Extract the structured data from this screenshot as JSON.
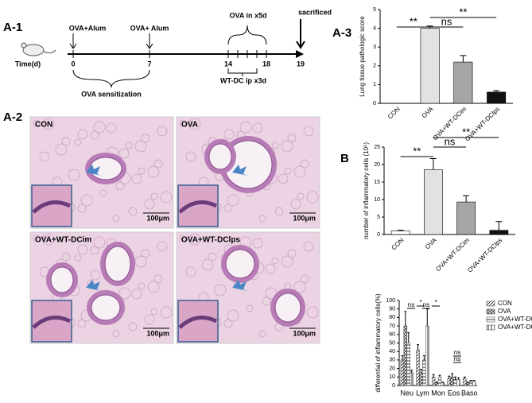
{
  "panel_labels": [
    "A-1",
    "A-3",
    "A-2",
    "B"
  ],
  "timeline": {
    "axis_label": "Time(d)",
    "days": [
      "0",
      "7",
      "14",
      "18",
      "19"
    ],
    "events": [
      "OVA+Alum",
      "OVA+ Alum",
      "OVA in x5d",
      "sacrificed"
    ],
    "treatment": "WT-DC ip x3d",
    "phase": "OVA sensitization"
  },
  "micrographs": [
    {
      "label": "CON",
      "scale": "100μm"
    },
    {
      "label": "OVA",
      "scale": "100μm"
    },
    {
      "label": "OVA+WT-DCim",
      "scale": "100μm"
    },
    {
      "label": "OVA+WT-DClps",
      "scale": "100μm"
    }
  ],
  "chart_data": [
    {
      "type": "bar",
      "ylabel": "Lung tissue pathologic score",
      "categories": [
        "CON",
        "OVA",
        "OVA+WT-DCim",
        "OVA+WT-DClps"
      ],
      "values": [
        0,
        4.0,
        2.2,
        0.6
      ],
      "errors": [
        0,
        0.12,
        0.35,
        0.08
      ],
      "colors": [
        "#ffffff",
        "#e2e2e2",
        "#a6a6a6",
        "#111111"
      ],
      "ylim": [
        0,
        5
      ],
      "yticks": [
        0,
        1,
        2,
        3,
        4,
        5
      ],
      "significance": [
        "**",
        "ns",
        "**"
      ]
    },
    {
      "type": "bar",
      "ylabel": "number of inflammatory cells (10⁵)",
      "categories": [
        "CON",
        "OVA",
        "OVA+WT-DCim",
        "OVA+WT-DClps"
      ],
      "values": [
        1,
        18.5,
        9.3,
        1.2
      ],
      "errors": [
        0.2,
        3.2,
        1.8,
        2.5
      ],
      "colors": [
        "#ffffff",
        "#e2e2e2",
        "#a6a6a6",
        "#111111"
      ],
      "ylim": [
        0,
        25
      ],
      "yticks": [
        0,
        5,
        10,
        15,
        20,
        25
      ],
      "significance": [
        "**",
        "ns",
        "**"
      ]
    },
    {
      "type": "grouped_bar",
      "ylabel": "differential of inflammatory cells(%)",
      "categories": [
        "Neu",
        "Lym",
        "Mon",
        "Eos",
        "Baso"
      ],
      "series": [
        {
          "name": "CON",
          "color": "#333333",
          "values": [
            30,
            42,
            10,
            8,
            8
          ],
          "errors": [
            5,
            6,
            3,
            3,
            2
          ]
        },
        {
          "name": "OVA",
          "color": "#333333",
          "values": [
            70,
            15,
            3,
            10,
            3
          ],
          "errors": [
            17,
            4,
            1,
            4,
            1
          ]
        },
        {
          "name": "OVA+WT-DCim",
          "color": "#333333",
          "values": [
            50,
            30,
            10,
            7,
            5
          ],
          "errors": [
            12,
            5,
            2,
            3,
            1
          ]
        },
        {
          "name": "OVA+WT-DClps",
          "color": "#333333",
          "values": [
            15,
            70,
            3,
            7,
            5
          ],
          "errors": [
            3,
            20,
            1,
            2,
            1
          ]
        }
      ],
      "ylim": [
        0,
        100
      ],
      "yticks": [
        0,
        10,
        20,
        30,
        40,
        50,
        60,
        70,
        80,
        90,
        100
      ],
      "significance": [
        "ns",
        "*",
        "ns",
        "*",
        "ns",
        "ns"
      ]
    }
  ]
}
